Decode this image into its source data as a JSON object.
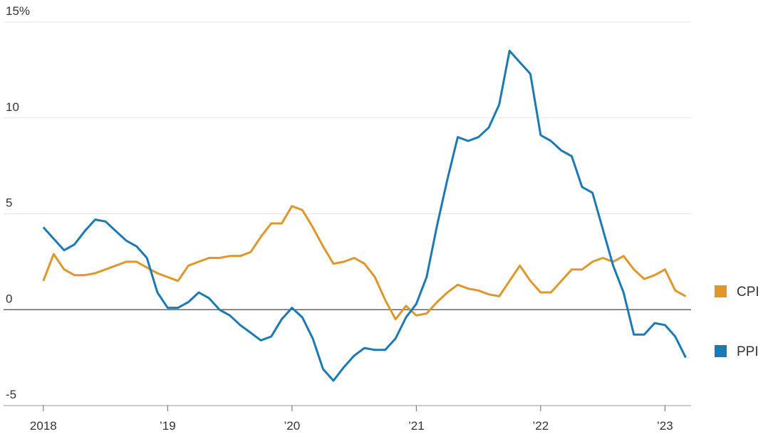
{
  "chart_data": {
    "type": "line",
    "x": [
      2018,
      2018.083,
      2018.167,
      2018.25,
      2018.333,
      2018.417,
      2018.5,
      2018.583,
      2018.667,
      2018.75,
      2018.833,
      2018.917,
      2019,
      2019.083,
      2019.167,
      2019.25,
      2019.333,
      2019.417,
      2019.5,
      2019.583,
      2019.667,
      2019.75,
      2019.833,
      2019.917,
      2020,
      2020.083,
      2020.167,
      2020.25,
      2020.333,
      2020.417,
      2020.5,
      2020.583,
      2020.667,
      2020.75,
      2020.833,
      2020.917,
      2021,
      2021.083,
      2021.167,
      2021.25,
      2021.333,
      2021.417,
      2021.5,
      2021.583,
      2021.667,
      2021.75,
      2021.833,
      2021.917,
      2022,
      2022.083,
      2022.167,
      2022.25,
      2022.333,
      2022.417,
      2022.5,
      2022.583,
      2022.667,
      2022.75,
      2022.833,
      2022.917,
      2023,
      2023.083,
      2023.167
    ],
    "series": [
      {
        "name": "CPI",
        "color": "#e0972a",
        "values": [
          1.5,
          2.9,
          2.1,
          1.8,
          1.8,
          1.9,
          2.1,
          2.3,
          2.5,
          2.5,
          2.2,
          1.9,
          1.7,
          1.5,
          2.3,
          2.5,
          2.7,
          2.7,
          2.8,
          2.8,
          3.0,
          3.8,
          4.5,
          4.5,
          5.4,
          5.2,
          4.3,
          3.3,
          2.4,
          2.5,
          2.7,
          2.4,
          1.7,
          0.5,
          -0.5,
          0.2,
          -0.3,
          -0.2,
          0.4,
          0.9,
          1.3,
          1.1,
          1.0,
          0.8,
          0.7,
          1.5,
          2.3,
          1.5,
          0.9,
          0.9,
          1.5,
          2.1,
          2.1,
          2.5,
          2.7,
          2.5,
          2.8,
          2.1,
          1.6,
          1.8,
          2.1,
          1.0,
          0.7
        ]
      },
      {
        "name": "PPI",
        "color": "#1a7ab5",
        "values": [
          4.3,
          3.7,
          3.1,
          3.4,
          4.1,
          4.7,
          4.6,
          4.1,
          3.6,
          3.3,
          2.7,
          0.9,
          0.1,
          0.1,
          0.4,
          0.9,
          0.6,
          0.0,
          -0.3,
          -0.8,
          -1.2,
          -1.6,
          -1.4,
          -0.5,
          0.1,
          -0.4,
          -1.5,
          -3.1,
          -3.7,
          -3.0,
          -2.4,
          -2.0,
          -2.1,
          -2.1,
          -1.5,
          -0.4,
          0.3,
          1.7,
          4.4,
          6.8,
          9.0,
          8.8,
          9.0,
          9.5,
          10.7,
          13.5,
          12.9,
          12.3,
          9.1,
          8.8,
          8.3,
          8.0,
          6.4,
          6.1,
          4.2,
          2.3,
          0.9,
          -1.3,
          -1.3,
          -0.7,
          -0.8,
          -1.4,
          -2.5
        ]
      }
    ],
    "xlim": [
      2017.68,
      2023.21
    ],
    "xticks": [
      {
        "value": 2018,
        "label": "2018"
      },
      {
        "value": 2019,
        "label": "’19"
      },
      {
        "value": 2020,
        "label": "’20"
      },
      {
        "value": 2021,
        "label": "’21"
      },
      {
        "value": 2022,
        "label": "’22"
      },
      {
        "value": 2023,
        "label": "’23"
      }
    ],
    "ylim": [
      -5,
      15
    ],
    "yticks": [
      -5,
      0,
      5,
      10,
      {
        "value": 15,
        "label": "15%"
      }
    ],
    "grid": true
  }
}
